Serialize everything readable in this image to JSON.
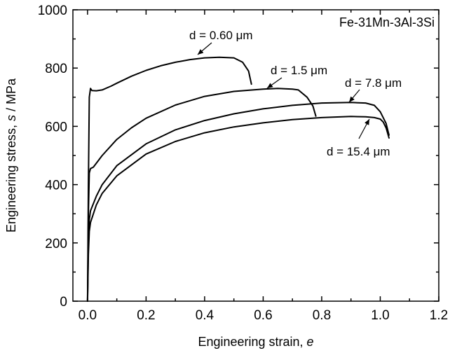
{
  "chart_data": {
    "type": "line",
    "xlabel_prefix": "Engineering strain, ",
    "xlabel_symbol": "e",
    "ylabel_prefix": "Engineering stress, ",
    "ylabel_symbol": "s",
    "ylabel_suffix": " / MPa",
    "xlim": [
      -0.05,
      1.2
    ],
    "ylim": [
      0,
      1000
    ],
    "xticks": [
      0.0,
      0.2,
      0.4,
      0.6,
      0.8,
      1.0,
      1.2
    ],
    "yticks": [
      0,
      200,
      400,
      600,
      800,
      1000
    ],
    "xtick_labels": [
      "0.0",
      "0.2",
      "0.4",
      "0.6",
      "0.8",
      "1.0",
      "1.2"
    ],
    "ytick_labels": [
      "0",
      "200",
      "400",
      "600",
      "800",
      "1000"
    ],
    "grid": false,
    "legend": "none",
    "annotation_box": "Fe-31Mn-3Al-3Si",
    "series": [
      {
        "name": "d = 0.60 μm",
        "label": "d = 0.60 μm",
        "x": [
          0.0,
          0.003,
          0.006,
          0.01,
          0.015,
          0.03,
          0.05,
          0.08,
          0.1,
          0.15,
          0.2,
          0.25,
          0.3,
          0.35,
          0.4,
          0.45,
          0.5,
          0.53,
          0.55,
          0.56
        ],
        "y": [
          0,
          400,
          700,
          730,
          723,
          722,
          725,
          738,
          748,
          772,
          792,
          808,
          820,
          829,
          835,
          837,
          835,
          820,
          790,
          745
        ]
      },
      {
        "name": "d = 1.5 μm",
        "label": "d = 1.5 μm",
        "x": [
          0.0,
          0.003,
          0.006,
          0.01,
          0.02,
          0.05,
          0.1,
          0.15,
          0.2,
          0.3,
          0.4,
          0.5,
          0.6,
          0.65,
          0.7,
          0.72,
          0.75,
          0.77,
          0.78
        ],
        "y": [
          0,
          300,
          440,
          455,
          460,
          500,
          555,
          595,
          628,
          673,
          703,
          720,
          728,
          730,
          728,
          725,
          700,
          670,
          635
        ]
      },
      {
        "name": "d = 7.8 μm",
        "label": "d = 7.8 μm",
        "x": [
          0.0,
          0.003,
          0.006,
          0.01,
          0.03,
          0.05,
          0.1,
          0.2,
          0.3,
          0.4,
          0.5,
          0.6,
          0.7,
          0.8,
          0.9,
          0.95,
          0.98,
          1.0,
          1.02,
          1.03
        ],
        "y": [
          0,
          200,
          280,
          310,
          360,
          400,
          465,
          540,
          588,
          620,
          643,
          660,
          672,
          680,
          682,
          680,
          672,
          650,
          610,
          570
        ]
      },
      {
        "name": "d = 15.4 μm",
        "label": "d = 15.4 μm",
        "x": [
          0.0,
          0.003,
          0.006,
          0.01,
          0.03,
          0.05,
          0.1,
          0.2,
          0.3,
          0.4,
          0.5,
          0.6,
          0.7,
          0.8,
          0.9,
          0.95,
          0.98,
          1.0,
          1.01,
          1.02,
          1.03
        ],
        "y": [
          0,
          160,
          240,
          270,
          330,
          370,
          430,
          505,
          548,
          578,
          598,
          612,
          623,
          630,
          634,
          633,
          630,
          625,
          615,
          595,
          560
        ]
      }
    ]
  }
}
